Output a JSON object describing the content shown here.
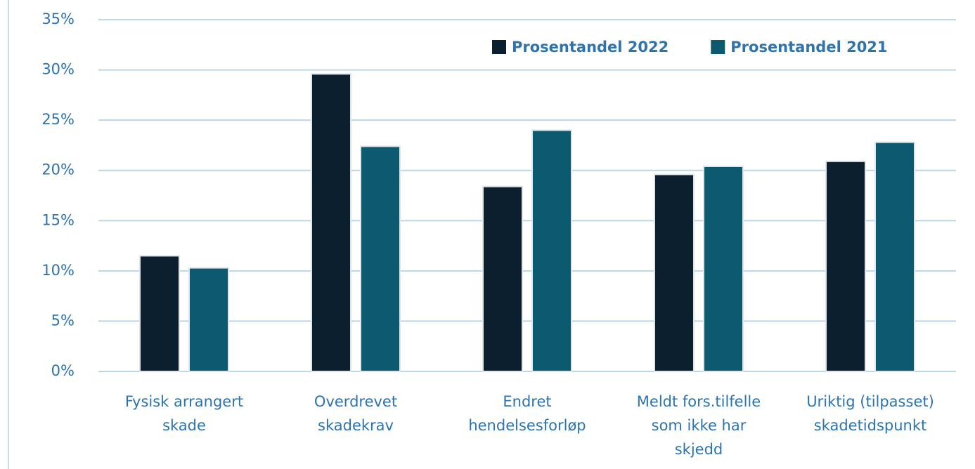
{
  "chart_data": {
    "type": "bar",
    "categories": [
      [
        "Fysisk arrangert",
        "skade"
      ],
      [
        "Overdrevet",
        "skadekrav"
      ],
      [
        "Endret",
        "hendelsesforløp"
      ],
      [
        "Meldt fors.tilfelle",
        "som ikke har",
        "skjedd"
      ],
      [
        "Uriktig (tilpasset)",
        "skadetidspunkt"
      ]
    ],
    "series": [
      {
        "name": "Prosentandel 2022",
        "color": "#0b1f2e",
        "values": [
          11.5,
          29.6,
          18.4,
          19.6,
          20.9
        ]
      },
      {
        "name": "Prosentandel 2021",
        "color": "#0b5a70",
        "values": [
          10.3,
          22.4,
          24.0,
          20.4,
          22.8
        ]
      }
    ],
    "ylim": [
      0,
      35
    ],
    "yticks": [
      {
        "value": 0,
        "label": "0%"
      },
      {
        "value": 5,
        "label": "5%"
      },
      {
        "value": 10,
        "label": "10%"
      },
      {
        "value": 15,
        "label": "15%"
      },
      {
        "value": 20,
        "label": "20%"
      },
      {
        "value": 25,
        "label": "25%"
      },
      {
        "value": 30,
        "label": "30%"
      },
      {
        "value": 35,
        "label": "35%"
      }
    ],
    "grid": true,
    "legend": "top-right"
  }
}
